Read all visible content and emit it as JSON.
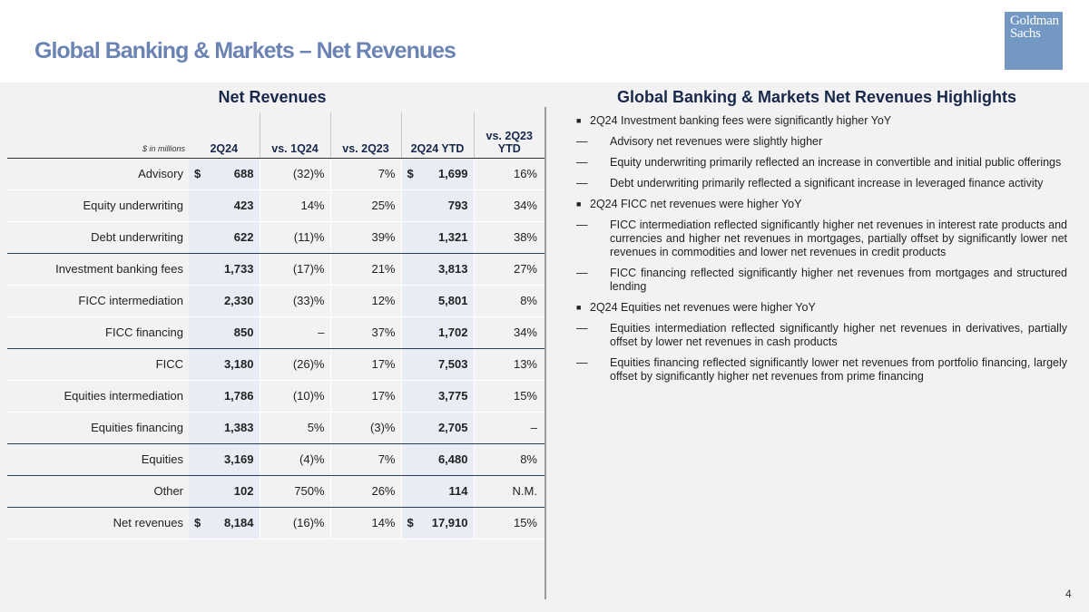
{
  "title": "Global Banking & Markets – Net Revenues",
  "logo": {
    "line1": "Goldman",
    "line2": "Sachs"
  },
  "left_panel": {
    "title": "Net Revenues",
    "units": "$ in millions",
    "columns": [
      "2Q24",
      "vs. 1Q24",
      "vs. 2Q23",
      "2Q24 YTD",
      "vs. 2Q23 YTD"
    ],
    "rows": [
      {
        "label": "Advisory",
        "cur1": "$",
        "v1": "688",
        "v2": "(32)%",
        "v3": "7%",
        "cur4": "$",
        "v4": "1,699",
        "v5": "16%"
      },
      {
        "label": "Equity underwriting",
        "cur1": "",
        "v1": "423",
        "v2": "14%",
        "v3": "25%",
        "cur4": "",
        "v4": "793",
        "v5": "34%"
      },
      {
        "label": "Debt underwriting",
        "cur1": "",
        "v1": "622",
        "v2": "(11)%",
        "v3": "39%",
        "cur4": "",
        "v4": "1,321",
        "v5": "38%"
      },
      {
        "label": "Investment banking fees",
        "cur1": "",
        "v1": "1,733",
        "v2": "(17)%",
        "v3": "21%",
        "cur4": "",
        "v4": "3,813",
        "v5": "27%"
      },
      {
        "label": "FICC intermediation",
        "cur1": "",
        "v1": "2,330",
        "v2": "(33)%",
        "v3": "12%",
        "cur4": "",
        "v4": "5,801",
        "v5": "8%"
      },
      {
        "label": "FICC financing",
        "cur1": "",
        "v1": "850",
        "v2": "–",
        "v3": "37%",
        "cur4": "",
        "v4": "1,702",
        "v5": "34%"
      },
      {
        "label": "FICC",
        "cur1": "",
        "v1": "3,180",
        "v2": "(26)%",
        "v3": "17%",
        "cur4": "",
        "v4": "7,503",
        "v5": "13%"
      },
      {
        "label": "Equities intermediation",
        "cur1": "",
        "v1": "1,786",
        "v2": "(10)%",
        "v3": "17%",
        "cur4": "",
        "v4": "3,775",
        "v5": "15%"
      },
      {
        "label": "Equities financing",
        "cur1": "",
        "v1": "1,383",
        "v2": "5%",
        "v3": "(3)%",
        "cur4": "",
        "v4": "2,705",
        "v5": "–"
      },
      {
        "label": "Equities",
        "cur1": "",
        "v1": "3,169",
        "v2": "(4)%",
        "v3": "7%",
        "cur4": "",
        "v4": "6,480",
        "v5": "8%"
      },
      {
        "label": "Other",
        "cur1": "",
        "v1": "102",
        "v2": "750%",
        "v3": "26%",
        "cur4": "",
        "v4": "114",
        "v5": "N.M."
      },
      {
        "label": "Net revenues",
        "cur1": "$",
        "v1": "8,184",
        "v2": "(16)%",
        "v3": "14%",
        "cur4": "$",
        "v4": "17,910",
        "v5": "15%"
      }
    ]
  },
  "right_panel": {
    "title": "Global Banking & Markets Net Revenues Highlights",
    "items": [
      {
        "level": 1,
        "text": "2Q24 Investment banking fees were significantly higher YoY"
      },
      {
        "level": 2,
        "text": "Advisory net revenues were slightly higher"
      },
      {
        "level": 2,
        "text": "Equity underwriting primarily reflected an increase in convertible and initial public offerings"
      },
      {
        "level": 2,
        "text": "Debt underwriting primarily reflected a significant increase in leveraged finance activity"
      },
      {
        "level": 1,
        "text": "2Q24 FICC net revenues were higher YoY"
      },
      {
        "level": 2,
        "text": "FICC intermediation reflected significantly higher net revenues in interest rate products and currencies and higher net revenues in mortgages, partially offset by significantly lower net revenues in commodities and lower net revenues in credit products"
      },
      {
        "level": 2,
        "text": "FICC financing reflected significantly higher net revenues from mortgages and structured lending"
      },
      {
        "level": 1,
        "text": "2Q24 Equities net revenues were higher YoY"
      },
      {
        "level": 2,
        "text": "Equities intermediation reflected significantly higher net revenues in derivatives, partially offset by lower net revenues in cash products"
      },
      {
        "level": 2,
        "text": "Equities financing reflected significantly lower net revenues from portfolio financing, largely offset by significantly higher net revenues from prime financing"
      }
    ]
  },
  "page_number": "4"
}
